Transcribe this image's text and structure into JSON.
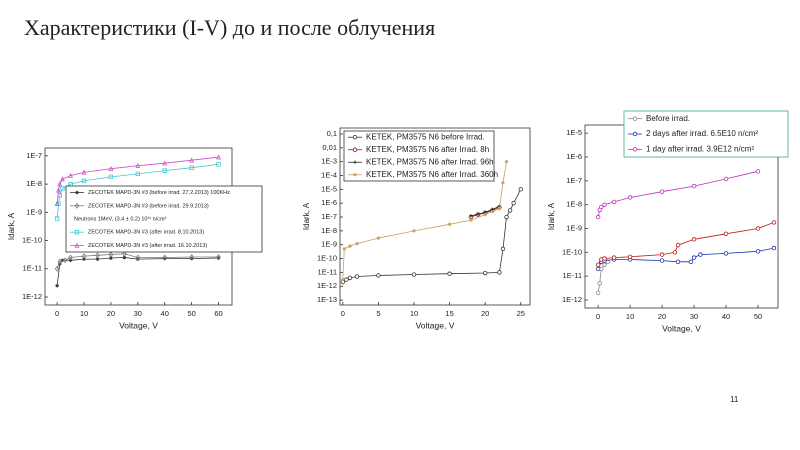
{
  "title": "Характеристики (I-V) до и после облучения",
  "page_number": "11",
  "chart_data": [
    {
      "type": "line",
      "y_log": true,
      "legend": "center",
      "xlabel": "Voltage, V",
      "ylabel": "Idark, A",
      "xlim": [
        -4.5,
        65
      ],
      "xticks": [
        0,
        10,
        20,
        30,
        40,
        50,
        60
      ],
      "ylim": [
        5.2e-13,
        1.9e-07
      ],
      "yticks": [
        {
          "value": 1e-12,
          "label": "1E-12"
        },
        {
          "value": 1e-11,
          "label": "1E-11"
        },
        {
          "value": 1e-10,
          "label": "1E-10"
        },
        {
          "value": 1e-09,
          "label": "1E-9"
        },
        {
          "value": 1e-08,
          "label": "1E-8"
        },
        {
          "value": 1e-07,
          "label": "1E-7"
        }
      ],
      "legend_note": "Neutrons 1MeV, (3.4 ± 0.2) 10¹¹ n/cm²",
      "series": [
        {
          "name": "ZECOTEK MAPD-3N #3 (before irrad. 27.2.2013) 100KHz",
          "color": "#333333",
          "marker": "star",
          "x": [
            0,
            1,
            2,
            5,
            10,
            15,
            20,
            25,
            30,
            40,
            50,
            60
          ],
          "values": [
            2.5e-12,
            1.5e-11,
            2e-11,
            2e-11,
            2.2e-11,
            2.2e-11,
            2.4e-11,
            2.5e-11,
            2.2e-11,
            2.3e-11,
            2.3e-11,
            2.4e-11
          ]
        },
        {
          "name": "ZECOTEK MAPD-3N #3 (before irrad. 29.9.2013)",
          "color": "#777777",
          "marker": "diamond",
          "x": [
            0,
            1,
            3,
            5,
            10,
            15,
            20,
            25,
            30,
            40,
            50,
            60
          ],
          "values": [
            1e-11,
            1.8e-11,
            2e-11,
            2.5e-11,
            2.8e-11,
            3e-11,
            3.2e-11,
            3.4e-11,
            2.5e-11,
            2.5e-11,
            2.6e-11,
            2.6e-11
          ]
        },
        {
          "name": "ZECOTEK MAPD-3N #3 (after irrad. 8.10.2013)",
          "color": "#3fc8d8",
          "marker": "square",
          "x": [
            0,
            0.5,
            1,
            2,
            5,
            10,
            20,
            30,
            40,
            50,
            60
          ],
          "values": [
            6e-10,
            2e-09,
            4e-09,
            7e-09,
            1e-08,
            1.3e-08,
            1.8e-08,
            2.3e-08,
            3e-08,
            3.8e-08,
            5e-08
          ]
        },
        {
          "name": "ZECOTEK MAPD-3N #3 (after irrad. 16.10.2013)",
          "color": "#d050c8",
          "marker": "triangle",
          "x": [
            0,
            0.5,
            1,
            2,
            5,
            10,
            20,
            30,
            40,
            50,
            60
          ],
          "values": [
            2e-09,
            6e-09,
            1e-08,
            1.5e-08,
            2e-08,
            2.6e-08,
            3.5e-08,
            4.5e-08,
            5.5e-08,
            7e-08,
            9e-08
          ]
        }
      ]
    },
    {
      "type": "line",
      "y_log": true,
      "legend": "upper left",
      "xlabel": "Voltage, V",
      "ylabel": "Idark, A",
      "xlim": [
        -0.4,
        26.3
      ],
      "xticks": [
        0,
        5,
        10,
        15,
        20,
        25
      ],
      "ylim": [
        4.4e-14,
        0.27
      ],
      "yticks": [
        {
          "value": 1e-13,
          "label": "1E-13"
        },
        {
          "value": 1e-12,
          "label": "1E-12"
        },
        {
          "value": 1e-11,
          "label": "1E-11"
        },
        {
          "value": 1e-10,
          "label": "1E-10"
        },
        {
          "value": 1e-09,
          "label": "1E-9"
        },
        {
          "value": 1e-08,
          "label": "1E-8"
        },
        {
          "value": 1e-07,
          "label": "1E-7"
        },
        {
          "value": 1e-06,
          "label": "1E-6"
        },
        {
          "value": 1e-05,
          "label": "1E-5"
        },
        {
          "value": 0.0001,
          "label": "1E-4"
        },
        {
          "value": 0.001,
          "label": "1E-3"
        },
        {
          "value": 0.01,
          "label": "0,01"
        },
        {
          "value": 0.1,
          "label": "0,1"
        }
      ],
      "series": [
        {
          "name": "KETEK, PM3575 N6 before Irrad.",
          "color": "#333333",
          "marker": "circle",
          "x": [
            0,
            0.5,
            1,
            2,
            5,
            10,
            15,
            20,
            22,
            22.5,
            23,
            23.5,
            24,
            25
          ],
          "values": [
            2e-12,
            3e-12,
            4e-12,
            5e-12,
            6e-12,
            7e-12,
            8e-12,
            9e-12,
            1e-11,
            5e-10,
            1e-07,
            3e-07,
            1e-06,
            1e-05
          ]
        },
        {
          "name": "KETEK, PM3575 N6 after Irrad. 8h",
          "color": "#8b1a1a",
          "marker": "circle",
          "x": [
            18,
            19,
            20,
            21,
            22
          ],
          "values": [
            1e-07,
            1.5e-07,
            2e-07,
            3e-07,
            5e-07
          ]
        },
        {
          "name": "KETEK, PM3575 N6 after Irrad. 96h",
          "color": "#222222",
          "marker": "plus",
          "x": [
            18,
            19,
            20,
            21,
            22
          ],
          "values": [
            1.2e-07,
            1.6e-07,
            2.2e-07,
            3.5e-07,
            6e-07
          ]
        },
        {
          "name": "KETEK, PM3575 N6 after Irrad. 360h",
          "color": "#c8a060",
          "marker": "star",
          "x": [
            0,
            0.2,
            1,
            2,
            5,
            10,
            15,
            18,
            20,
            22,
            22.5,
            23
          ],
          "values": [
            3e-12,
            5e-10,
            8e-10,
            1.2e-09,
            3e-09,
            1e-08,
            3e-08,
            6e-08,
            1.5e-07,
            4e-07,
            3e-05,
            0.001
          ]
        }
      ]
    },
    {
      "type": "line",
      "y_log": true,
      "legend": "top",
      "xlabel": "Voltage, V",
      "ylabel": "Idark, A",
      "xlim": [
        -4.1,
        56.25
      ],
      "xticks": [
        0,
        10,
        20,
        30,
        40,
        50
      ],
      "ylim": [
        4.6e-13,
        2.2e-05
      ],
      "yticks": [
        {
          "value": 1e-12,
          "label": "1E-12"
        },
        {
          "value": 1e-11,
          "label": "1E-11"
        },
        {
          "value": 1e-10,
          "label": "1E-10"
        },
        {
          "value": 1e-09,
          "label": "1E-9"
        },
        {
          "value": 1e-08,
          "label": "1E-8"
        },
        {
          "value": 1e-07,
          "label": "1E-7"
        },
        {
          "value": 1e-06,
          "label": "1E-6"
        },
        {
          "value": 1e-05,
          "label": "1E-5"
        }
      ],
      "series": [
        {
          "name": "Before irrad.",
          "color": "#888888",
          "marker": "circle",
          "x": [
            0,
            0.5,
            1,
            2,
            3
          ],
          "values": [
            2e-12,
            5e-12,
            2e-11,
            3e-11,
            4e-11
          ]
        },
        {
          "name": "2 days after irrad. 6.5E10 n/cm²",
          "color": "#1a2fb0",
          "marker": "circle",
          "x": [
            0,
            1,
            2,
            5,
            10,
            20,
            25,
            29,
            30,
            32,
            40,
            50,
            55
          ],
          "values": [
            2e-11,
            4e-11,
            4.5e-11,
            5e-11,
            5e-11,
            4.5e-11,
            4e-11,
            4e-11,
            6e-11,
            8e-11,
            9e-11,
            1.1e-10,
            1.5e-10
          ]
        },
        {
          "name": "1 day after irrad. 3.9E12 n/cm²",
          "color": "#c02cc0",
          "marker": "circle",
          "x": [
            0,
            0.5,
            1,
            2,
            5,
            10,
            20,
            30,
            40,
            50
          ],
          "values": [
            3e-09,
            6e-09,
            8e-09,
            1e-08,
            1.3e-08,
            2e-08,
            3.5e-08,
            6e-08,
            1.2e-07,
            2.5e-07
          ]
        },
        {
          "color": "#c01818",
          "marker": "circle",
          "x": [
            0,
            1,
            2,
            5,
            10,
            20,
            24,
            25,
            30,
            40,
            50,
            55
          ],
          "values": [
            3e-11,
            5e-11,
            5.5e-11,
            6e-11,
            6.5e-11,
            8e-11,
            1e-10,
            2e-10,
            3.5e-10,
            6e-10,
            1e-09,
            1.8e-09
          ]
        }
      ]
    }
  ]
}
